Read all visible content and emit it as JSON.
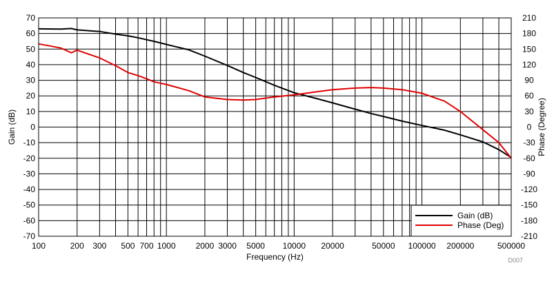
{
  "chart_data": {
    "type": "line",
    "xlabel": "Frequency (Hz)",
    "ylabel_left": "Gain (dB)",
    "ylabel_right": "Phase (Degree)",
    "x_scale": "log",
    "xlim": [
      100,
      500000
    ],
    "ylim_left": [
      -70,
      70
    ],
    "ylim_right": [
      -210,
      210
    ],
    "x_ticks": [
      100,
      200,
      300,
      500,
      700,
      1000,
      2000,
      3000,
      5000,
      10000,
      20000,
      50000,
      100000,
      200000,
      500000
    ],
    "x_tick_labels": [
      "100",
      "200",
      "300",
      "500",
      "700",
      "1000",
      "2000",
      "3000",
      "5000",
      "10000",
      "20000",
      "50000",
      "100000",
      "200000",
      "500000"
    ],
    "y_left_ticks": [
      70,
      60,
      50,
      40,
      30,
      20,
      10,
      0,
      -10,
      -20,
      -30,
      -40,
      -50,
      -60,
      -70
    ],
    "y_left_tick_labels": [
      "70",
      "60",
      "50",
      "40",
      "30",
      "20",
      "10",
      "0",
      "-10",
      "-20",
      "-30",
      "-40",
      "-50",
      "-60",
      "-70"
    ],
    "y_right_ticks": [
      210,
      180,
      150,
      120,
      90,
      60,
      30,
      0,
      -30,
      -60,
      -90,
      -120,
      -150,
      -180,
      -210
    ],
    "y_right_tick_labels": [
      "210",
      "180",
      "150",
      "120",
      "90",
      "60",
      "30",
      "0",
      "-30",
      "-60",
      "-90",
      "-120",
      "-150",
      "-180",
      "-210"
    ],
    "grid": true,
    "legend_position": "bottom-right",
    "series": [
      {
        "name": "Gain (dB)",
        "axis": "left",
        "color": "#000000",
        "x": [
          100,
          150,
          180,
          200,
          300,
          400,
          500,
          600,
          700,
          800,
          1000,
          1500,
          2000,
          3000,
          4000,
          5000,
          7000,
          10000,
          15000,
          20000,
          30000,
          40000,
          50000,
          70000,
          100000,
          150000,
          200000,
          300000,
          400000,
          500000
        ],
        "y": [
          63,
          62.8,
          63.2,
          62.3,
          61.3,
          59.6,
          58.5,
          57.3,
          56,
          55,
          53,
          49.5,
          45.5,
          39.5,
          35,
          31.8,
          26.8,
          22,
          18.3,
          15.5,
          11.5,
          8.7,
          6.8,
          3.8,
          1,
          -2,
          -5,
          -9.5,
          -14.5,
          -19.5
        ]
      },
      {
        "name": "Phase (Deg)",
        "axis": "right",
        "color": "#e00000",
        "x": [
          100,
          150,
          180,
          200,
          300,
          400,
          500,
          600,
          700,
          800,
          1000,
          1500,
          2000,
          3000,
          4000,
          5000,
          7000,
          10000,
          15000,
          20000,
          30000,
          40000,
          50000,
          70000,
          100000,
          150000,
          200000,
          300000,
          400000,
          500000
        ],
        "y": [
          160,
          152,
          143,
          148,
          133,
          118,
          105,
          99,
          93,
          87,
          82,
          70,
          58,
          53,
          52,
          53,
          58,
          62,
          68,
          72,
          75,
          76,
          75,
          72,
          65,
          50,
          30,
          -5,
          -30,
          -60
        ]
      }
    ],
    "annotation": "D007"
  }
}
